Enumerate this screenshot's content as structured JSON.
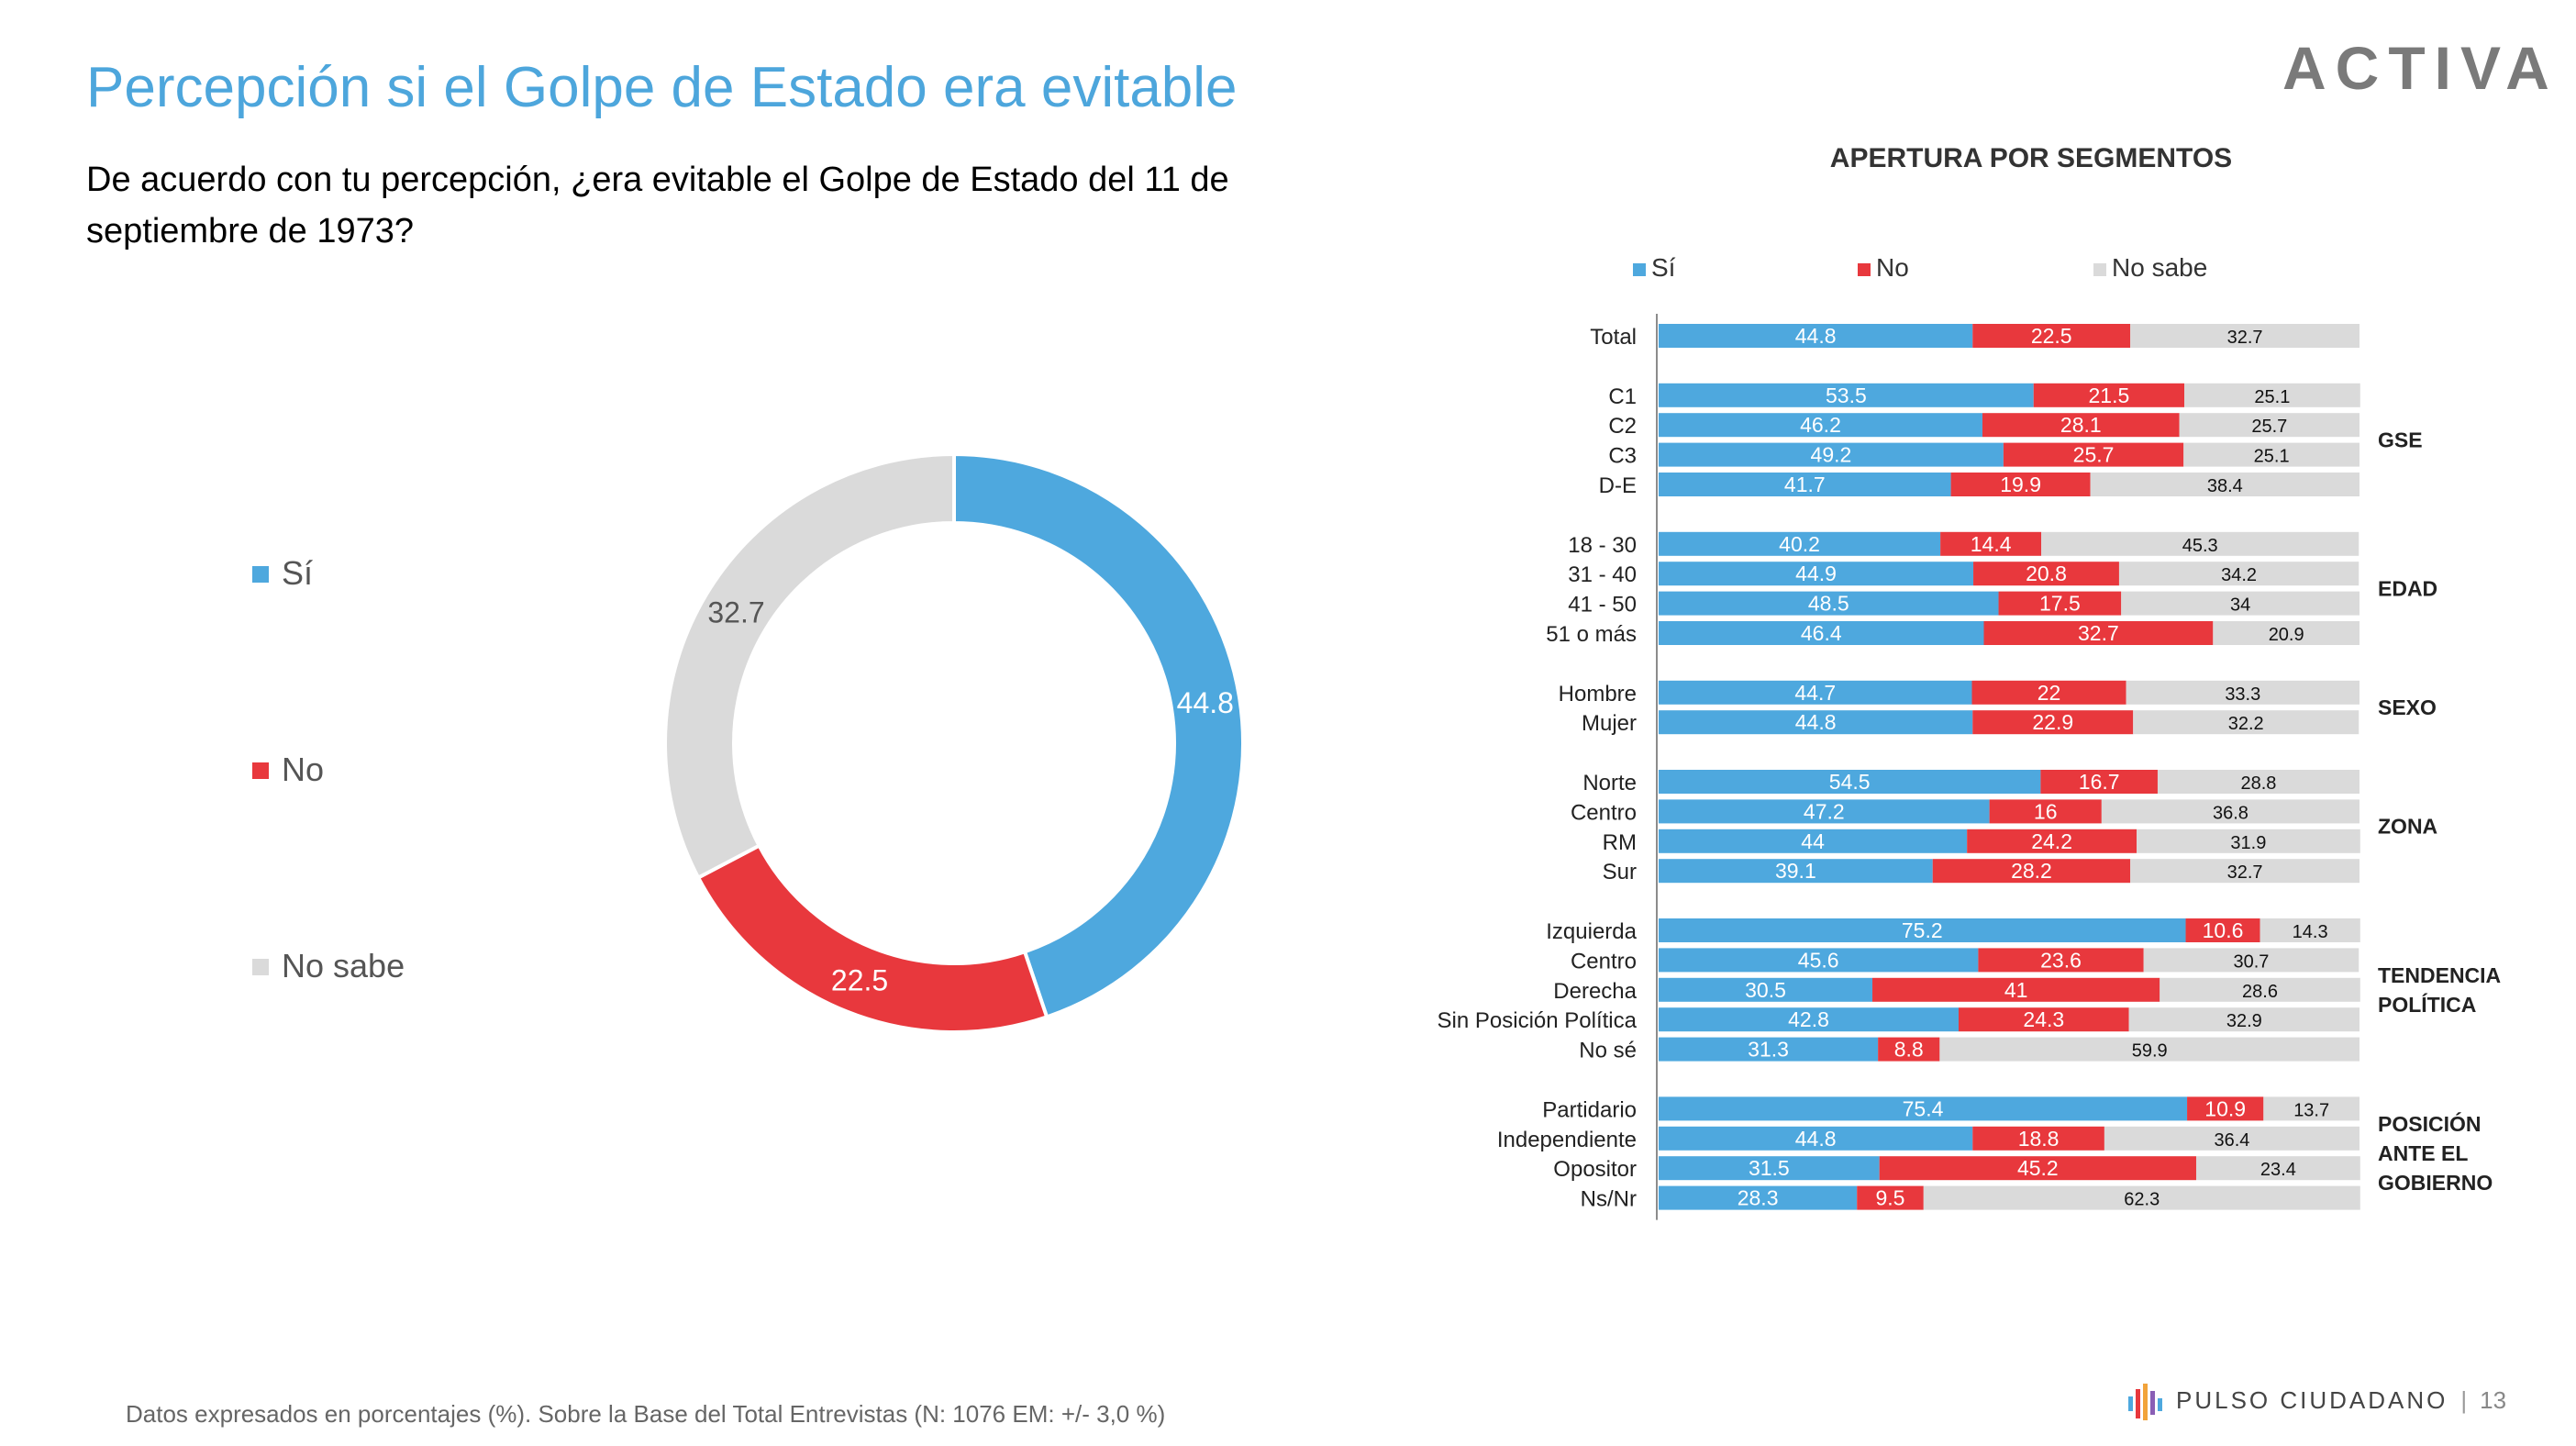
{
  "header": {
    "title": "Percepción si el Golpe de Estado era evitable",
    "question": "De acuerdo con tu percepción, ¿era evitable el  Golpe de Estado del 11 de septiembre de 1973?",
    "logo_text": "ACTIVA"
  },
  "footer": {
    "note": "Datos expresados en porcentajes (%). Sobre la Base del Total Entrevistas (N: 1076 EM: +/- 3,0 %)",
    "brand": "PULSO CIUDADANO",
    "separator": "|",
    "page_number": "13"
  },
  "colors": {
    "si": "#4ea8de",
    "no": "#e8383d",
    "nosabe": "#dadada"
  },
  "chart_data": [
    {
      "type": "pie",
      "variant": "donut",
      "categories": [
        "Sí",
        "No",
        "No sabe"
      ],
      "values": [
        44.8,
        22.5,
        32.7
      ],
      "legend_position": "left"
    },
    {
      "type": "bar",
      "orientation": "horizontal",
      "stacked": true,
      "title": "APERTURA POR SEGMENTOS",
      "legend": [
        "Sí",
        "No",
        "No sabe"
      ],
      "legend_position": "top",
      "xlim": [
        0,
        100
      ],
      "groups": [
        {
          "label": "",
          "rows": [
            {
              "label": "Total",
              "values": [
                44.8,
                22.5,
                32.7
              ]
            }
          ]
        },
        {
          "label": "GSE",
          "rows": [
            {
              "label": "C1",
              "values": [
                53.5,
                21.5,
                25.1
              ]
            },
            {
              "label": "C2",
              "values": [
                46.2,
                28.1,
                25.7
              ]
            },
            {
              "label": "C3",
              "values": [
                49.2,
                25.7,
                25.1
              ]
            },
            {
              "label": "D-E",
              "values": [
                41.7,
                19.9,
                38.4
              ]
            }
          ]
        },
        {
          "label": "EDAD",
          "rows": [
            {
              "label": "18 - 30",
              "values": [
                40.2,
                14.4,
                45.3
              ]
            },
            {
              "label": "31 - 40",
              "values": [
                44.9,
                20.8,
                34.2
              ]
            },
            {
              "label": "41 - 50",
              "values": [
                48.5,
                17.5,
                34
              ]
            },
            {
              "label": "51 o más",
              "values": [
                46.4,
                32.7,
                20.9
              ]
            }
          ]
        },
        {
          "label": "SEXO",
          "rows": [
            {
              "label": "Hombre",
              "values": [
                44.7,
                22,
                33.3
              ]
            },
            {
              "label": "Mujer",
              "values": [
                44.8,
                22.9,
                32.2
              ]
            }
          ]
        },
        {
          "label": "ZONA",
          "rows": [
            {
              "label": "Norte",
              "values": [
                54.5,
                16.7,
                28.8
              ]
            },
            {
              "label": "Centro",
              "values": [
                47.2,
                16,
                36.8
              ]
            },
            {
              "label": "RM",
              "values": [
                44,
                24.2,
                31.9
              ]
            },
            {
              "label": "Sur",
              "values": [
                39.1,
                28.2,
                32.7
              ]
            }
          ]
        },
        {
          "label": "TENDENCIA POLÍTICA",
          "rows": [
            {
              "label": "Izquierda",
              "values": [
                75.2,
                10.6,
                14.3
              ]
            },
            {
              "label": "Centro",
              "values": [
                45.6,
                23.6,
                30.7
              ]
            },
            {
              "label": "Derecha",
              "values": [
                30.5,
                41,
                28.6
              ]
            },
            {
              "label": "Sin Posición Política",
              "values": [
                42.8,
                24.3,
                32.9
              ]
            },
            {
              "label": "No sé",
              "values": [
                31.3,
                8.8,
                59.9
              ]
            }
          ]
        },
        {
          "label": "POSICIÓN ANTE EL GOBIERNO",
          "rows": [
            {
              "label": "Partidario",
              "values": [
                75.4,
                10.9,
                13.7
              ]
            },
            {
              "label": "Independiente",
              "values": [
                44.8,
                18.8,
                36.4
              ]
            },
            {
              "label": "Opositor",
              "values": [
                31.5,
                45.2,
                23.4
              ]
            },
            {
              "label": "Ns/Nr",
              "values": [
                28.3,
                9.5,
                62.3
              ]
            }
          ]
        }
      ]
    }
  ]
}
